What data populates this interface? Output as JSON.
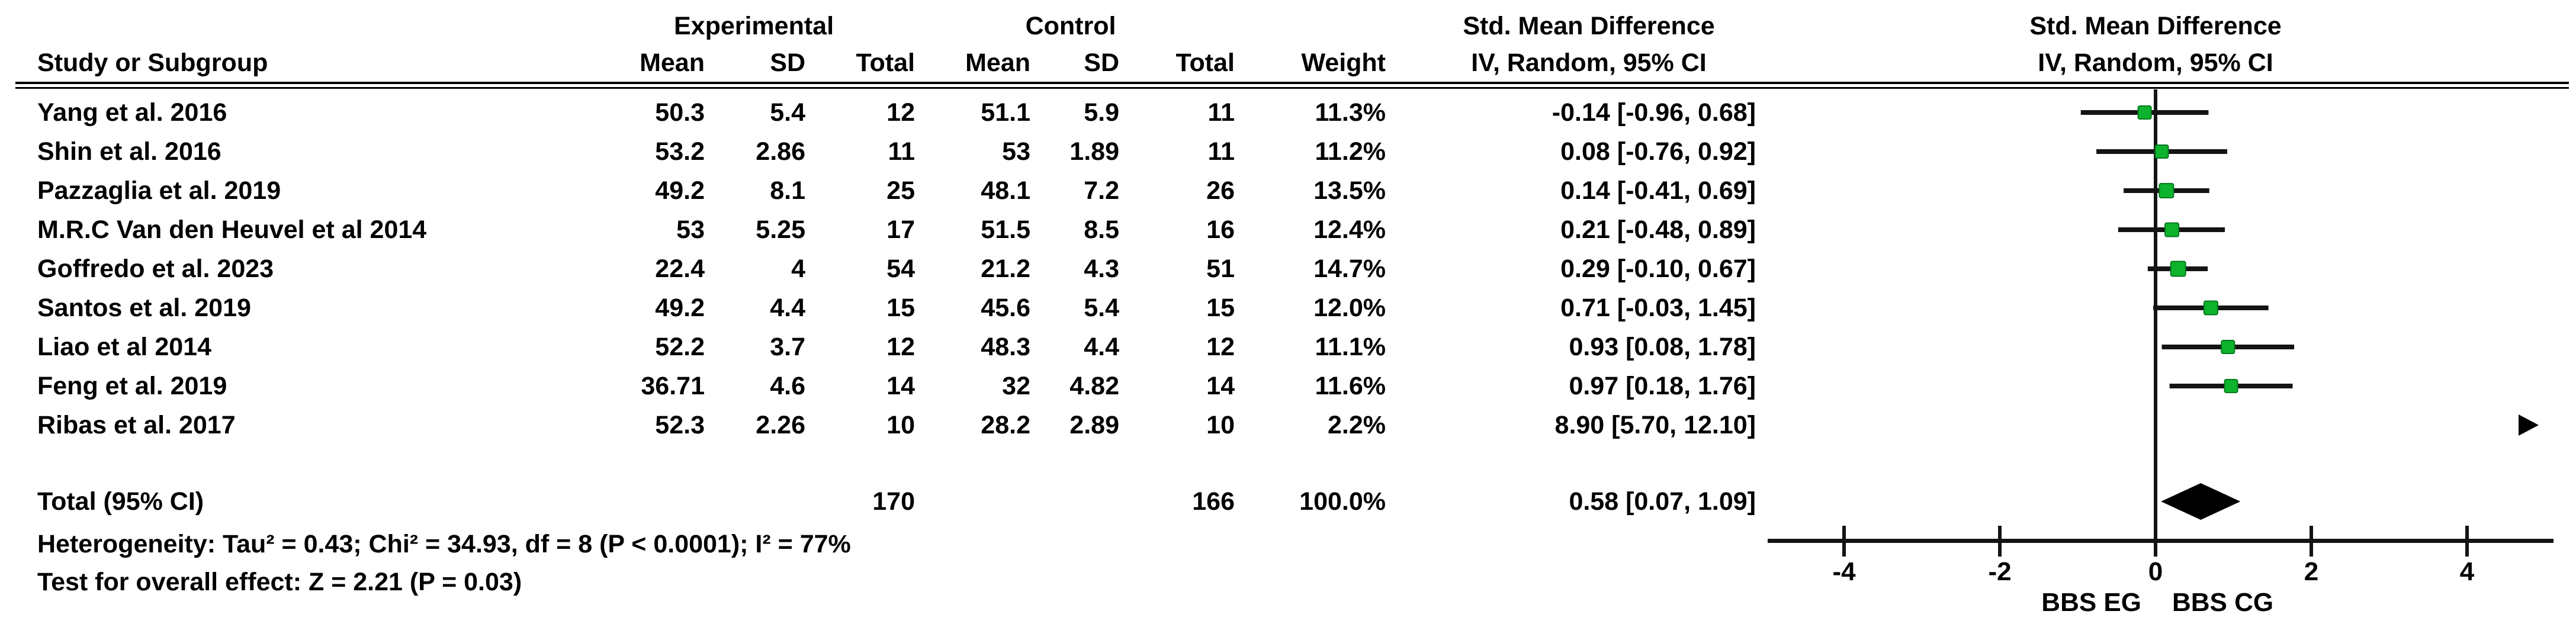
{
  "table": {
    "col_headers": {
      "group_experimental": "Experimental",
      "group_control": "Control",
      "smd_text_line1": "Std. Mean Difference",
      "smd_text_line2": "IV, Random, 95% CI",
      "smd_plot_line1": "Std. Mean Difference",
      "smd_plot_line2": "IV, Random, 95% CI",
      "study": "Study or Subgroup",
      "mean1": "Mean",
      "sd1": "SD",
      "total1": "Total",
      "mean2": "Mean",
      "sd2": "SD",
      "total2": "Total",
      "weight": "Weight"
    },
    "rows": [
      {
        "study": "Yang et al. 2016",
        "mean1": "50.3",
        "sd1": "5.4",
        "total1": "12",
        "mean2": "51.1",
        "sd2": "5.9",
        "total2": "11",
        "weight": "11.3%",
        "ci": "-0.14 [-0.96, 0.68]"
      },
      {
        "study": "Shin et al. 2016",
        "mean1": "53.2",
        "sd1": "2.86",
        "total1": "11",
        "mean2": "53",
        "sd2": "1.89",
        "total2": "11",
        "weight": "11.2%",
        "ci": "0.08 [-0.76, 0.92]"
      },
      {
        "study": "Pazzaglia et al. 2019",
        "mean1": "49.2",
        "sd1": "8.1",
        "total1": "25",
        "mean2": "48.1",
        "sd2": "7.2",
        "total2": "26",
        "weight": "13.5%",
        "ci": "0.14 [-0.41, 0.69]"
      },
      {
        "study": "M.R.C Van den Heuvel et al 2014",
        "mean1": "53",
        "sd1": "5.25",
        "total1": "17",
        "mean2": "51.5",
        "sd2": "8.5",
        "total2": "16",
        "weight": "12.4%",
        "ci": "0.21 [-0.48, 0.89]"
      },
      {
        "study": "Goffredo et al. 2023",
        "mean1": "22.4",
        "sd1": "4",
        "total1": "54",
        "mean2": "21.2",
        "sd2": "4.3",
        "total2": "51",
        "weight": "14.7%",
        "ci": "0.29 [-0.10, 0.67]"
      },
      {
        "study": "Santos et al. 2019",
        "mean1": "49.2",
        "sd1": "4.4",
        "total1": "15",
        "mean2": "45.6",
        "sd2": "5.4",
        "total2": "15",
        "weight": "12.0%",
        "ci": "0.71 [-0.03, 1.45]"
      },
      {
        "study": "Liao et al 2014",
        "mean1": "52.2",
        "sd1": "3.7",
        "total1": "12",
        "mean2": "48.3",
        "sd2": "4.4",
        "total2": "12",
        "weight": "11.1%",
        "ci": "0.93 [0.08, 1.78]"
      },
      {
        "study": "Feng et al. 2019",
        "mean1": "36.71",
        "sd1": "4.6",
        "total1": "14",
        "mean2": "32",
        "sd2": "4.82",
        "total2": "14",
        "weight": "11.6%",
        "ci": "0.97 [0.18, 1.76]"
      },
      {
        "study": "Ribas et al. 2017",
        "mean1": "52.3",
        "sd1": "2.26",
        "total1": "10",
        "mean2": "28.2",
        "sd2": "2.89",
        "total2": "10",
        "weight": "2.2%",
        "ci": "8.90 [5.70, 12.10]"
      }
    ],
    "total": {
      "label": "Total (95% CI)",
      "total1": "170",
      "total2": "166",
      "weight": "100.0%",
      "ci": "0.58 [0.07, 1.09]"
    }
  },
  "footnotes": {
    "heterogeneity": "Heterogeneity: Tau² = 0.43; Chi² = 34.93, df = 8 (P < 0.0001); I² = 77%",
    "overall_effect": "Test for overall effect: Z = 2.21 (P = 0.03)"
  },
  "chart_data": {
    "type": "forest",
    "title": "Std. Mean Difference",
    "method": "IV, Random, 95% CI",
    "x_axis": {
      "ticks": [
        -4,
        -2,
        0,
        2,
        4
      ],
      "min": -5,
      "max": 5.1,
      "group_label_left": "BBS EG",
      "group_label_right": "BBS CG"
    },
    "studies": [
      {
        "name": "Yang et al. 2016",
        "est": -0.14,
        "lo": -0.96,
        "hi": 0.68,
        "weight_pct": 11.3
      },
      {
        "name": "Shin et al. 2016",
        "est": 0.08,
        "lo": -0.76,
        "hi": 0.92,
        "weight_pct": 11.2
      },
      {
        "name": "Pazzaglia et al. 2019",
        "est": 0.14,
        "lo": -0.41,
        "hi": 0.69,
        "weight_pct": 13.5
      },
      {
        "name": "M.R.C Van den Heuvel et al 2014",
        "est": 0.21,
        "lo": -0.48,
        "hi": 0.89,
        "weight_pct": 12.4
      },
      {
        "name": "Goffredo et al. 2023",
        "est": 0.29,
        "lo": -0.1,
        "hi": 0.67,
        "weight_pct": 14.7
      },
      {
        "name": "Santos et al. 2019",
        "est": 0.71,
        "lo": -0.03,
        "hi": 1.45,
        "weight_pct": 12.0
      },
      {
        "name": "Liao et al 2014",
        "est": 0.93,
        "lo": 0.08,
        "hi": 1.78,
        "weight_pct": 11.1
      },
      {
        "name": "Feng et al. 2019",
        "est": 0.97,
        "lo": 0.18,
        "hi": 1.76,
        "weight_pct": 11.6
      },
      {
        "name": "Ribas et al. 2017",
        "est": 8.9,
        "lo": 5.7,
        "hi": 12.1,
        "weight_pct": 2.2
      }
    ],
    "overall": {
      "name": "Total (95% CI)",
      "est": 0.58,
      "lo": 0.07,
      "hi": 1.09
    },
    "marker_color": "#0db32c",
    "marker_edge_color": "#067a1e",
    "line_color": "#141414"
  }
}
